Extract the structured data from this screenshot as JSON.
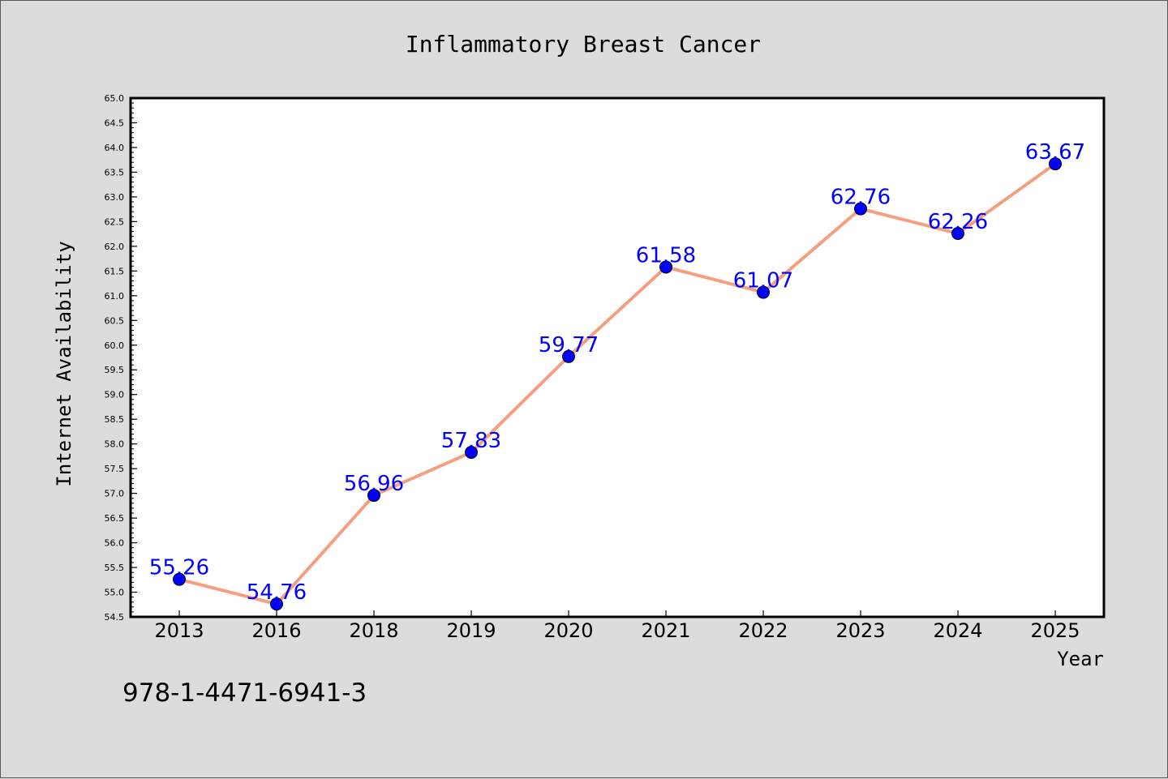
{
  "chart_data": {
    "type": "line",
    "title": "Inflammatory Breast Cancer",
    "xlabel": "Year",
    "ylabel": "Internet Availability",
    "categories": [
      "2013",
      "2016",
      "2018",
      "2019",
      "2020",
      "2021",
      "2022",
      "2023",
      "2024",
      "2025"
    ],
    "series": [
      {
        "values": [
          55.26,
          54.76,
          56.96,
          57.83,
          59.77,
          61.58,
          61.07,
          62.76,
          62.26,
          63.67
        ]
      }
    ],
    "ylim": [
      54.5,
      65.0
    ],
    "y_ticks": [
      "54.5",
      "55.0",
      "55.5",
      "56.0",
      "56.5",
      "57.0",
      "57.5",
      "58.0",
      "58.5",
      "59.0",
      "59.5",
      "60.0",
      "60.5",
      "61.0",
      "61.5",
      "62.0",
      "62.5",
      "63.0",
      "63.5",
      "64.0",
      "64.5",
      "65.0"
    ],
    "data_labels": [
      "55.26",
      "54.76",
      "56.96",
      "57.83",
      "59.77",
      "61.58",
      "61.07",
      "62.76",
      "62.26",
      "63.67"
    ],
    "grid": false,
    "legend": "none",
    "colors": {
      "line": "#f4a07e",
      "marker": "#0000ff",
      "label": "#0000ff",
      "background": "#dcdcdc",
      "plot_area": "#ffffff"
    }
  },
  "annotation": "978-1-4471-6941-3"
}
